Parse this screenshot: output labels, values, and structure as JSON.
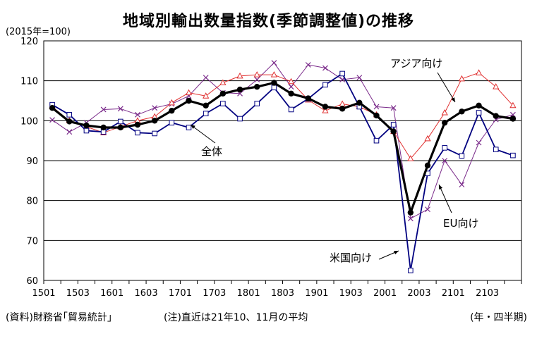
{
  "chart_data": {
    "type": "line",
    "title": "地域別輸出数量指数(季節調整値)の推移",
    "unit_note": "(2015年=100)",
    "ylim": [
      60,
      120
    ],
    "y_ticks": [
      60,
      70,
      80,
      90,
      100,
      110,
      120
    ],
    "x_tick_labels": [
      "1501",
      "1503",
      "1601",
      "1603",
      "1701",
      "1703",
      "1801",
      "1803",
      "1901",
      "1903",
      "2001",
      "2003",
      "2101",
      "2103"
    ],
    "x": [
      "1501",
      "1502",
      "1503",
      "1504",
      "1601",
      "1602",
      "1603",
      "1604",
      "1701",
      "1702",
      "1703",
      "1704",
      "1801",
      "1802",
      "1803",
      "1804",
      "1901",
      "1902",
      "1903",
      "1904",
      "2001",
      "2002",
      "2003",
      "2004",
      "2101",
      "2102",
      "2103",
      "2104"
    ],
    "grid": "horizontal",
    "series": [
      {
        "name": "全体",
        "color": "#000000",
        "marker": "filled-circle",
        "values": [
          103.2,
          99.8,
          98.8,
          98.3,
          98.3,
          99.0,
          100.0,
          102.5,
          105.0,
          103.8,
          106.8,
          107.8,
          108.5,
          109.5,
          106.8,
          105.6,
          103.5,
          103.0,
          104.5,
          101.3,
          97.3,
          77.0,
          88.8,
          99.5,
          102.3,
          103.8,
          101.2,
          100.5
        ]
      },
      {
        "name": "米国向け",
        "color": "#000080",
        "marker": "hollow-square",
        "values": [
          104.0,
          101.5,
          97.5,
          97.2,
          99.8,
          97.0,
          96.8,
          99.5,
          98.3,
          101.8,
          104.3,
          100.5,
          104.3,
          108.3,
          102.8,
          105.5,
          109.0,
          111.8,
          103.5,
          95.0,
          99.0,
          62.5,
          86.8,
          93.2,
          91.2,
          102.0,
          92.8,
          91.3
        ]
      },
      {
        "name": "EU向け",
        "color": "#7a2a8a",
        "marker": "x",
        "values": [
          100.2,
          97.2,
          99.5,
          102.8,
          103.0,
          101.5,
          103.2,
          104.2,
          106.2,
          110.8,
          107.0,
          106.8,
          110.3,
          114.5,
          108.5,
          114.0,
          113.2,
          110.3,
          110.8,
          103.5,
          103.2,
          75.5,
          77.8,
          90.0,
          84.0,
          94.5,
          100.3,
          101.5
        ]
      },
      {
        "name": "アジア向け",
        "color": "#e03030",
        "marker": "hollow-triangle",
        "values": [
          103.5,
          100.0,
          98.5,
          97.0,
          98.5,
          100.0,
          101.0,
          104.5,
          107.0,
          106.2,
          109.5,
          111.2,
          111.5,
          111.5,
          109.8,
          105.2,
          102.5,
          104.2,
          103.5,
          101.5,
          97.3,
          90.5,
          95.5,
          102.0,
          110.5,
          112.0,
          108.5,
          103.8
        ]
      }
    ],
    "source": "(資料)財務省｢貿易統計｣",
    "footnote": "(注)直近は21年10、11月の平均",
    "x_unit": "(年・四半期)"
  }
}
